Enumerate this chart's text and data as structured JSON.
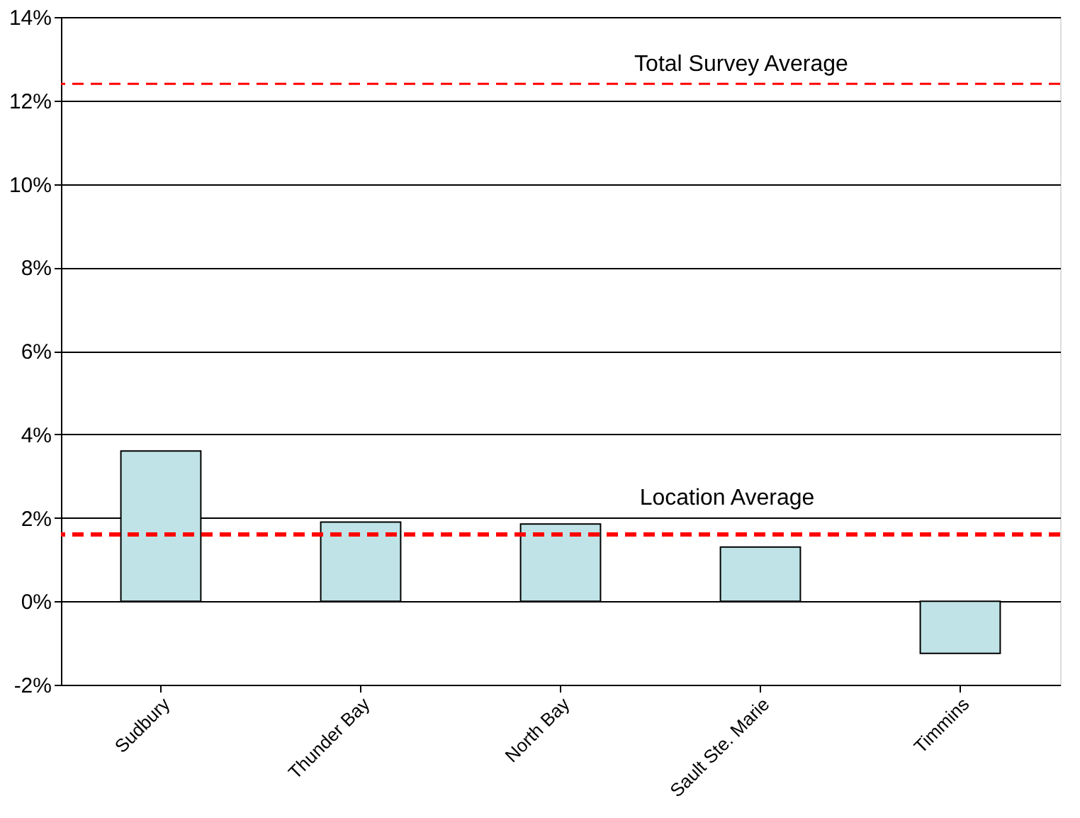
{
  "chart_data": {
    "type": "bar",
    "categories": [
      "Sudbury",
      "Thunder Bay",
      "North Bay",
      "Sault Ste. Marie",
      "Timmins"
    ],
    "values": [
      3.6,
      1.9,
      1.85,
      1.3,
      -1.25
    ],
    "color": "#bfe3e6",
    "ylim": [
      -2,
      14
    ],
    "yticks": [
      {
        "value": -2,
        "label": "-2%"
      },
      {
        "value": 0,
        "label": "0%"
      },
      {
        "value": 2,
        "label": "2%"
      },
      {
        "value": 4,
        "label": "4%"
      },
      {
        "value": 6,
        "label": "6%"
      },
      {
        "value": 8,
        "label": "8%"
      },
      {
        "value": 10,
        "label": "10%"
      },
      {
        "value": 12,
        "label": "12%"
      },
      {
        "value": 14,
        "label": "14%"
      }
    ],
    "grid": "y",
    "ref_lines": [
      {
        "axis": "y",
        "value": 12.4,
        "label": "Total Survey Average",
        "color": "#ff0000",
        "line_style": "dashed"
      },
      {
        "axis": "y",
        "value": 1.6,
        "label": "Location Average",
        "color": "#ff0000",
        "line_style": "dashed"
      }
    ]
  }
}
